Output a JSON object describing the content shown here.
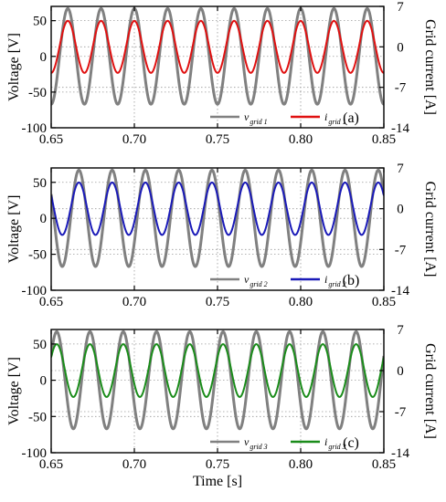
{
  "chart_data": [
    {
      "type": "line",
      "panel_label": "(a)",
      "xlabel": "",
      "ylabel_left": "Voltage [V]",
      "ylabel_right": "Grid current [A]",
      "xlim": [
        0.65,
        0.85
      ],
      "ylim_left": [
        -100,
        70
      ],
      "ylim_right": [
        -14,
        7
      ],
      "x_ticks": [
        "0.65",
        "0.70",
        "0.75",
        "0.80",
        "0.85"
      ],
      "y_ticks_left": [
        "50",
        "0",
        "-50",
        "-100"
      ],
      "y_ticks_right": [
        "7",
        "0",
        "-7",
        "-14"
      ],
      "grid": true,
      "legend_position": "bottom-right",
      "series": [
        {
          "name": "v",
          "subscript": "grid 1",
          "axis": "left",
          "waveform": "sine",
          "amplitude": 67,
          "frequency_hz": 50,
          "phase_deg": 90,
          "color": "#808080"
        },
        {
          "name": "i",
          "subscript": "grid 1",
          "axis": "right",
          "waveform": "sine",
          "amplitude": 4.5,
          "frequency_hz": 50,
          "phase_deg": 90,
          "color": "#e01010"
        }
      ]
    },
    {
      "type": "line",
      "panel_label": "(b)",
      "xlabel": "",
      "ylabel_left": "Voltage [V]",
      "ylabel_right": "Grid current [A]",
      "xlim": [
        0.65,
        0.85
      ],
      "ylim_left": [
        -100,
        70
      ],
      "ylim_right": [
        -14,
        7
      ],
      "x_ticks": [
        "0.65",
        "0.70",
        "0.75",
        "0.80",
        "0.85"
      ],
      "y_ticks_left": [
        "50",
        "0",
        "-50",
        "-100"
      ],
      "y_ticks_right": [
        "7",
        "0",
        "-7",
        "-14"
      ],
      "grid": true,
      "legend_position": "bottom-right",
      "series": [
        {
          "name": "v",
          "subscript": "grid 2",
          "axis": "left",
          "waveform": "sine",
          "amplitude": 67,
          "frequency_hz": 50,
          "phase_deg": -30,
          "color": "#808080"
        },
        {
          "name": "i",
          "subscript": "grid 2",
          "axis": "right",
          "waveform": "sine",
          "amplitude": 4.5,
          "frequency_hz": 50,
          "phase_deg": -30,
          "color": "#1a1ab8"
        }
      ]
    },
    {
      "type": "line",
      "panel_label": "(c)",
      "xlabel": "Time [s]",
      "ylabel_left": "Voltage [V]",
      "ylabel_right": "Grid current [A]",
      "xlim": [
        0.65,
        0.85
      ],
      "ylim_left": [
        -100,
        70
      ],
      "ylim_right": [
        -14,
        7
      ],
      "x_ticks": [
        "0.65",
        "0.70",
        "0.75",
        "0.80",
        "0.85"
      ],
      "y_ticks_left": [
        "50",
        "0",
        "-50",
        "-100"
      ],
      "y_ticks_right": [
        "7",
        "0",
        "-7",
        "-14"
      ],
      "grid": true,
      "legend_position": "bottom-right",
      "series": [
        {
          "name": "v",
          "subscript": "grid 3",
          "axis": "left",
          "waveform": "sine",
          "amplitude": 67,
          "frequency_hz": 50,
          "phase_deg": 210,
          "color": "#808080"
        },
        {
          "name": "i",
          "subscript": "grid 3",
          "axis": "right",
          "waveform": "sine",
          "amplitude": 4.5,
          "frequency_hz": 50,
          "phase_deg": 210,
          "color": "#1a8c1a"
        }
      ]
    }
  ]
}
